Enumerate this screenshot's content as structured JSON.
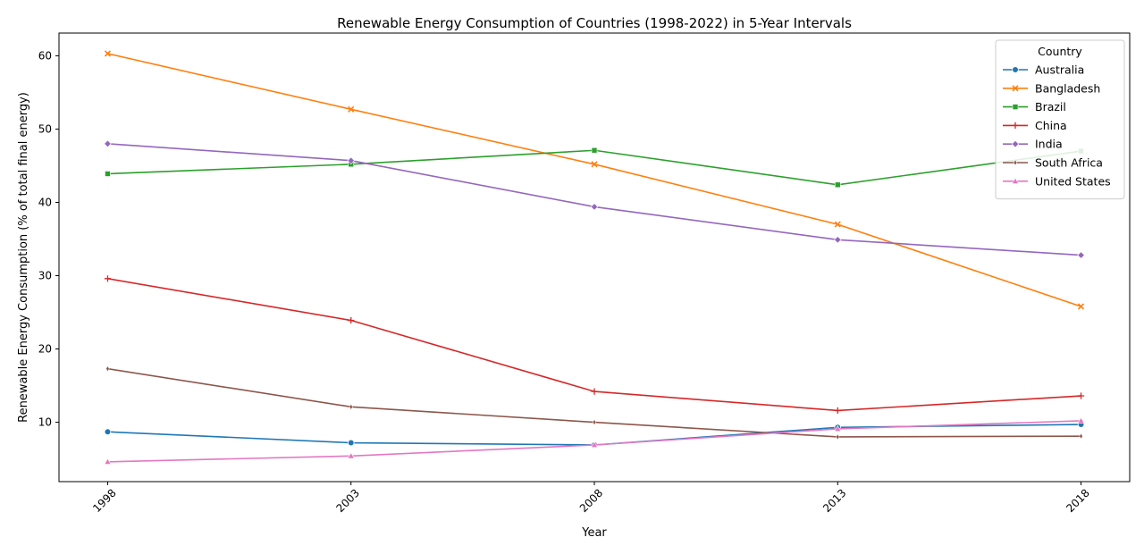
{
  "chart_data": {
    "type": "line",
    "title": "Renewable Energy Consumption of Countries (1998-2022) in 5-Year Intervals",
    "xlabel": "Year",
    "ylabel": "Renewable Energy Consumption (% of total final energy)",
    "x": [
      1998,
      2003,
      2008,
      2013,
      2018
    ],
    "xticks": [
      "1998",
      "2003",
      "2008",
      "2013",
      "2018"
    ],
    "yticks": [
      10,
      20,
      30,
      40,
      50,
      60
    ],
    "ylim": [
      1.9,
      63.1
    ],
    "grid": false,
    "legend": {
      "title": "Country",
      "placement": "top-right"
    },
    "series": [
      {
        "name": "Australia",
        "color": "#1f77b4",
        "marker": "circle",
        "values": [
          8.7,
          7.2,
          6.9,
          9.3,
          9.7
        ]
      },
      {
        "name": "Bangladesh",
        "color": "#ff7f0e",
        "marker": "x",
        "values": [
          60.3,
          52.7,
          45.2,
          37.0,
          25.8
        ]
      },
      {
        "name": "Brazil",
        "color": "#2ca02c",
        "marker": "square",
        "values": [
          43.9,
          45.2,
          47.1,
          42.4,
          47.0
        ]
      },
      {
        "name": "China",
        "color": "#d62728",
        "marker": "plus",
        "values": [
          29.6,
          23.9,
          14.2,
          11.6,
          13.6
        ]
      },
      {
        "name": "India",
        "color": "#9467bd",
        "marker": "diamond",
        "values": [
          48.0,
          45.7,
          39.4,
          34.9,
          32.8
        ]
      },
      {
        "name": "South Africa",
        "color": "#8c564b",
        "marker": "thin-diamond",
        "values": [
          17.3,
          12.1,
          10.0,
          8.0,
          8.1
        ]
      },
      {
        "name": "United States",
        "color": "#e377c2",
        "marker": "triangle",
        "values": [
          4.6,
          5.4,
          6.9,
          9.1,
          10.2
        ]
      }
    ]
  }
}
